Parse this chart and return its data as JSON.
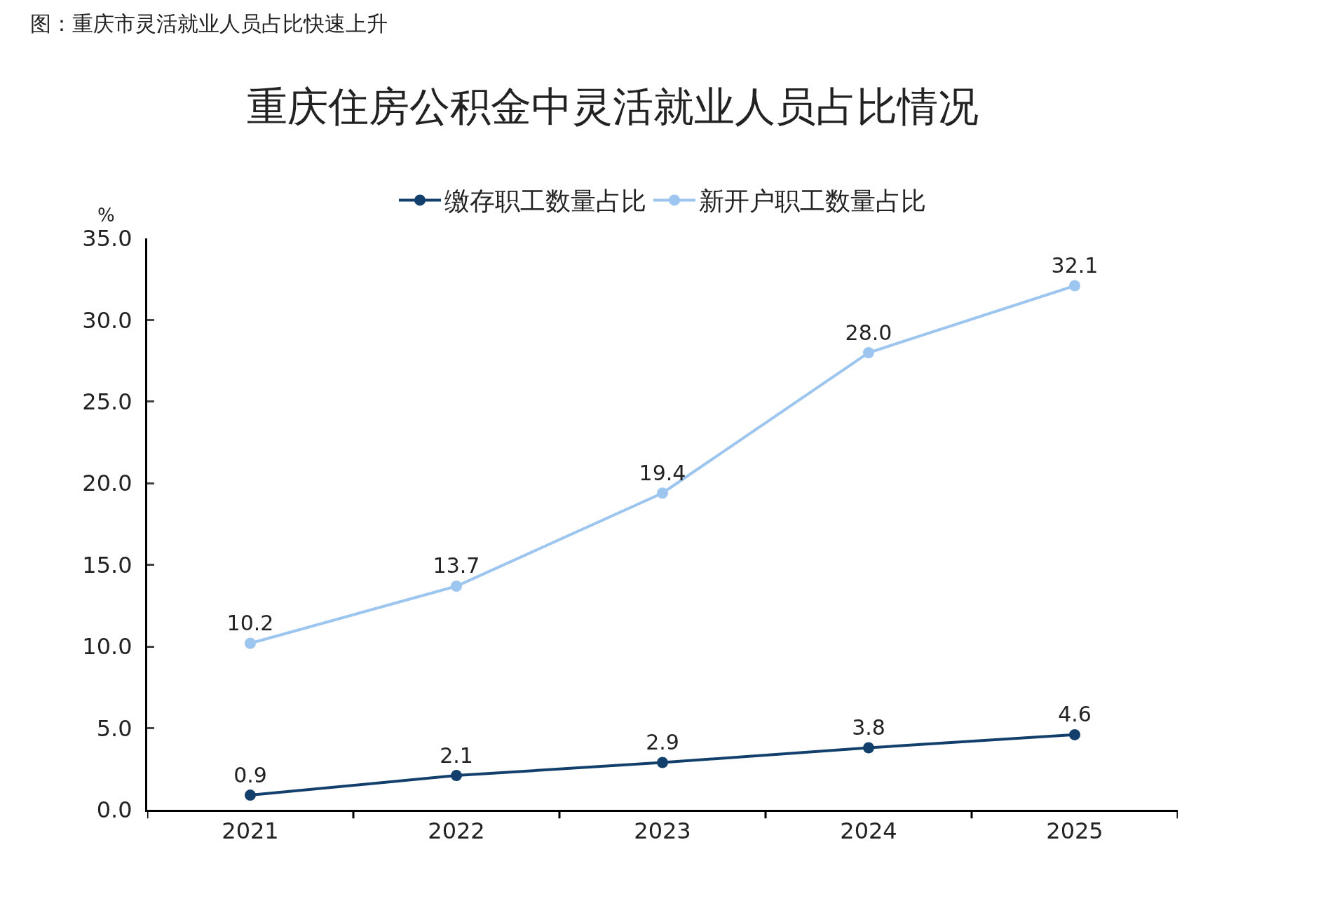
{
  "chart_data": {
    "type": "line",
    "title": "重庆住房公积金中灵活就业人员占比情况",
    "subtitle": "图：重庆市灵活就业人员占比快速上升",
    "ylabel": "%",
    "categories": [
      "2021",
      "2022",
      "2023",
      "2024",
      "2025"
    ],
    "series": [
      {
        "name": "缴存职工数量占比",
        "color": "#123f6c",
        "values": [
          0.9,
          2.1,
          2.9,
          3.8,
          4.6
        ],
        "value_labels": [
          "0.9",
          "2.1",
          "2.9",
          "3.8",
          "4.6"
        ]
      },
      {
        "name": "新开户职工数量占比",
        "color": "#9cc5f0",
        "values": [
          10.2,
          13.7,
          19.4,
          28.0,
          32.1
        ],
        "value_labels": [
          "10.2",
          "13.7",
          "19.4",
          "28.0",
          "32.1"
        ]
      }
    ],
    "ylim": [
      0,
      35
    ],
    "yticks": [
      {
        "value": 0,
        "label": "0.0"
      },
      {
        "value": 5,
        "label": "5.0"
      },
      {
        "value": 10,
        "label": "10.0"
      },
      {
        "value": 15,
        "label": "15.0"
      },
      {
        "value": 20,
        "label": "20.0"
      },
      {
        "value": 25,
        "label": "25.0"
      },
      {
        "value": 30,
        "label": "30.0"
      },
      {
        "value": 35,
        "label": "35.0"
      }
    ],
    "legend": "top",
    "marker": "circle",
    "line_style": "solid"
  }
}
